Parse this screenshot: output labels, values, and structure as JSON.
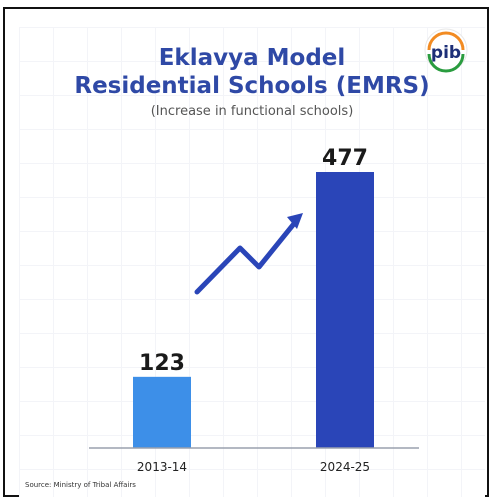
{
  "header": {
    "title_line1": "Eklavya Model",
    "title_line2": "Residential Schools (EMRS)",
    "subtitle": "(Increase in functional schools)"
  },
  "logo": {
    "name": "pib-logo",
    "text": "pib"
  },
  "footer": {
    "source": "Source: Ministry of Tribal Affairs"
  },
  "colors": {
    "title": "#2f49a6",
    "bar_light": "#3d8fe8",
    "bar_dark": "#2a45b8",
    "arrow": "#2a45b8",
    "axis": "#9aa0ad"
  },
  "icons": {
    "trend": "trend-up-arrow-icon"
  },
  "chart_data": {
    "type": "bar",
    "categories": [
      "2013-14",
      "2024-25"
    ],
    "values": [
      123,
      477
    ],
    "title": "Eklavya Model Residential Schools (EMRS)",
    "subtitle": "(Increase in functional schools)",
    "xlabel": "",
    "ylabel": "",
    "ylim": [
      0,
      477
    ],
    "grid": true,
    "legend": "none"
  }
}
